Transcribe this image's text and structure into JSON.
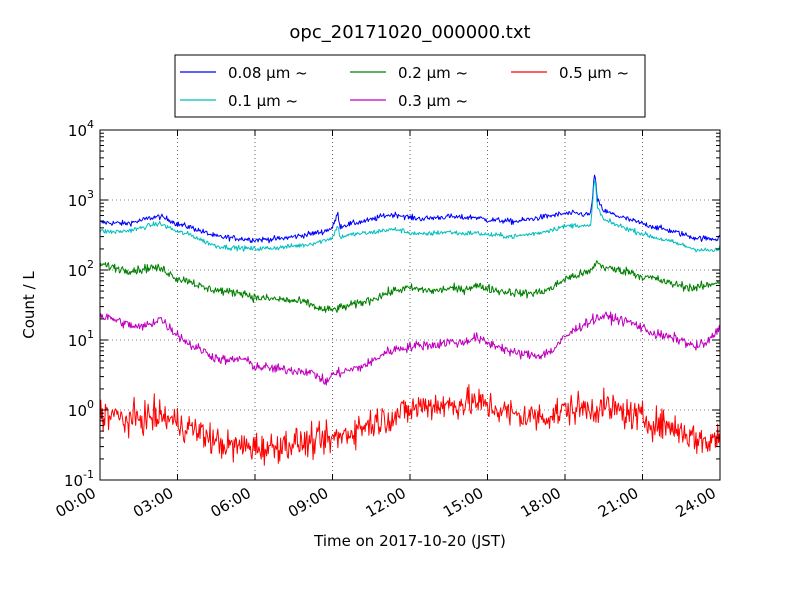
{
  "chart_data": {
    "type": "line",
    "title": "opc_20171020_000000.txt",
    "xlabel": "Time on 2017-10-20 (JST)",
    "ylabel": "Count / L",
    "xlim": [
      0,
      24
    ],
    "ylim": [
      0.1,
      10000
    ],
    "yscale": "log",
    "grid": true,
    "legend_position": "top (outside plot, above axes)",
    "x_ticks": [
      {
        "value": 0,
        "label": "00:00"
      },
      {
        "value": 3,
        "label": "03:00"
      },
      {
        "value": 6,
        "label": "06:00"
      },
      {
        "value": 9,
        "label": "09:00"
      },
      {
        "value": 12,
        "label": "12:00"
      },
      {
        "value": 15,
        "label": "15:00"
      },
      {
        "value": 18,
        "label": "18:00"
      },
      {
        "value": 21,
        "label": "21:00"
      },
      {
        "value": 24,
        "label": "24:00"
      }
    ],
    "y_ticks": [
      {
        "value": 0.1,
        "base": "10",
        "exp": "-1"
      },
      {
        "value": 1,
        "base": "10",
        "exp": "0"
      },
      {
        "value": 10,
        "base": "10",
        "exp": "1"
      },
      {
        "value": 100,
        "base": "10",
        "exp": "2"
      },
      {
        "value": 1000,
        "base": "10",
        "exp": "3"
      },
      {
        "value": 10000,
        "base": "10",
        "exp": "4"
      }
    ],
    "series": [
      {
        "name": "0.08 μm ~",
        "color": "#0000ff",
        "noise": 0.04,
        "points": [
          [
            0,
            480
          ],
          [
            0.5,
            470
          ],
          [
            1,
            460
          ],
          [
            1.5,
            500
          ],
          [
            2,
            560
          ],
          [
            2.3,
            580
          ],
          [
            2.7,
            520
          ],
          [
            3,
            450
          ],
          [
            3.5,
            410
          ],
          [
            4,
            350
          ],
          [
            4.5,
            300
          ],
          [
            5,
            290
          ],
          [
            6,
            270
          ],
          [
            7,
            280
          ],
          [
            8,
            320
          ],
          [
            8.6,
            350
          ],
          [
            9,
            400
          ],
          [
            9.2,
            650
          ],
          [
            9.3,
            420
          ],
          [
            9.5,
            440
          ],
          [
            10,
            480
          ],
          [
            10.5,
            520
          ],
          [
            11,
            600
          ],
          [
            11.5,
            620
          ],
          [
            12,
            560
          ],
          [
            12.5,
            540
          ],
          [
            13,
            560
          ],
          [
            13.5,
            580
          ],
          [
            14,
            560
          ],
          [
            14.5,
            570
          ],
          [
            15,
            520
          ],
          [
            15.5,
            510
          ],
          [
            16,
            490
          ],
          [
            16.5,
            520
          ],
          [
            17,
            560
          ],
          [
            17.5,
            600
          ],
          [
            18,
            640
          ],
          [
            18.5,
            640
          ],
          [
            18.8,
            620
          ],
          [
            19,
            630
          ],
          [
            19.15,
            2500
          ],
          [
            19.25,
            1000
          ],
          [
            19.5,
            700
          ],
          [
            20,
            600
          ],
          [
            20.5,
            520
          ],
          [
            21,
            460
          ],
          [
            21.5,
            410
          ],
          [
            22,
            370
          ],
          [
            22.5,
            330
          ],
          [
            23,
            290
          ],
          [
            23.5,
            280
          ],
          [
            23.9,
            280
          ],
          [
            24,
            320
          ]
        ]
      },
      {
        "name": "0.1 μm ~",
        "color": "#00bfbf",
        "noise": 0.035,
        "points": [
          [
            0,
            360
          ],
          [
            0.5,
            350
          ],
          [
            1,
            360
          ],
          [
            1.5,
            390
          ],
          [
            2,
            440
          ],
          [
            2.3,
            460
          ],
          [
            2.7,
            400
          ],
          [
            3,
            350
          ],
          [
            3.5,
            320
          ],
          [
            4,
            260
          ],
          [
            4.5,
            220
          ],
          [
            5,
            210
          ],
          [
            6,
            200
          ],
          [
            7,
            210
          ],
          [
            8,
            230
          ],
          [
            8.6,
            260
          ],
          [
            9,
            290
          ],
          [
            9.2,
            430
          ],
          [
            9.3,
            290
          ],
          [
            9.5,
            310
          ],
          [
            10,
            330
          ],
          [
            10.5,
            340
          ],
          [
            11,
            370
          ],
          [
            11.5,
            380
          ],
          [
            12,
            340
          ],
          [
            12.5,
            320
          ],
          [
            13,
            340
          ],
          [
            13.5,
            350
          ],
          [
            14,
            330
          ],
          [
            14.5,
            340
          ],
          [
            15,
            320
          ],
          [
            15.5,
            310
          ],
          [
            16,
            300
          ],
          [
            16.5,
            320
          ],
          [
            17,
            340
          ],
          [
            17.5,
            380
          ],
          [
            18,
            420
          ],
          [
            18.5,
            440
          ],
          [
            18.8,
            420
          ],
          [
            19,
            420
          ],
          [
            19.15,
            2300
          ],
          [
            19.25,
            800
          ],
          [
            19.5,
            520
          ],
          [
            20,
            440
          ],
          [
            20.5,
            380
          ],
          [
            21,
            330
          ],
          [
            21.5,
            290
          ],
          [
            22,
            260
          ],
          [
            22.5,
            230
          ],
          [
            23,
            200
          ],
          [
            23.5,
            190
          ],
          [
            23.9,
            190
          ],
          [
            24,
            210
          ]
        ]
      },
      {
        "name": "0.2 μm ~",
        "color": "#008000",
        "noise": 0.06,
        "points": [
          [
            0,
            120
          ],
          [
            0.5,
            110
          ],
          [
            1,
            100
          ],
          [
            1.5,
            100
          ],
          [
            2,
            110
          ],
          [
            2.5,
            100
          ],
          [
            3,
            75
          ],
          [
            3.5,
            70
          ],
          [
            4,
            55
          ],
          [
            4.5,
            52
          ],
          [
            5,
            48
          ],
          [
            5.5,
            48
          ],
          [
            6,
            40
          ],
          [
            7,
            38
          ],
          [
            8,
            34
          ],
          [
            8.6,
            27
          ],
          [
            9,
            27
          ],
          [
            9.5,
            30
          ],
          [
            10,
            33
          ],
          [
            10.5,
            38
          ],
          [
            11,
            45
          ],
          [
            11.5,
            52
          ],
          [
            12,
            55
          ],
          [
            12.5,
            52
          ],
          [
            13,
            50
          ],
          [
            13.5,
            55
          ],
          [
            14,
            52
          ],
          [
            14.5,
            60
          ],
          [
            15,
            55
          ],
          [
            15.5,
            50
          ],
          [
            16,
            48
          ],
          [
            16.5,
            46
          ],
          [
            17,
            48
          ],
          [
            17.5,
            55
          ],
          [
            18,
            75
          ],
          [
            18.5,
            85
          ],
          [
            19,
            95
          ],
          [
            19.2,
            130
          ],
          [
            19.5,
            110
          ],
          [
            20,
            100
          ],
          [
            20.5,
            95
          ],
          [
            21,
            80
          ],
          [
            21.5,
            75
          ],
          [
            22,
            65
          ],
          [
            22.5,
            60
          ],
          [
            23,
            55
          ],
          [
            23.5,
            60
          ],
          [
            24,
            70
          ]
        ]
      },
      {
        "name": "0.3 μm ~",
        "color": "#bf00bf",
        "noise": 0.07,
        "points": [
          [
            0,
            22
          ],
          [
            0.5,
            20
          ],
          [
            1,
            17
          ],
          [
            1.5,
            15
          ],
          [
            2,
            17
          ],
          [
            2.3,
            21
          ],
          [
            2.6,
            16
          ],
          [
            3,
            12
          ],
          [
            3.5,
            8.5
          ],
          [
            4,
            7
          ],
          [
            4.5,
            5.5
          ],
          [
            5,
            5
          ],
          [
            5.5,
            5.5
          ],
          [
            6,
            4.2
          ],
          [
            7,
            3.8
          ],
          [
            8,
            3.6
          ],
          [
            8.5,
            3.0
          ],
          [
            8.7,
            2.4
          ],
          [
            9,
            3.2
          ],
          [
            9.5,
            3.6
          ],
          [
            10,
            4.0
          ],
          [
            10.5,
            4.8
          ],
          [
            11,
            6.5
          ],
          [
            11.5,
            7.5
          ],
          [
            12,
            8
          ],
          [
            12.5,
            8.5
          ],
          [
            13,
            8.5
          ],
          [
            13.5,
            9.5
          ],
          [
            14,
            9
          ],
          [
            14.5,
            11
          ],
          [
            15,
            9
          ],
          [
            15.5,
            8
          ],
          [
            16,
            6.5
          ],
          [
            16.5,
            6.2
          ],
          [
            17,
            6
          ],
          [
            17.5,
            7
          ],
          [
            18,
            11
          ],
          [
            18.5,
            15
          ],
          [
            19,
            19
          ],
          [
            19.5,
            22
          ],
          [
            20,
            20
          ],
          [
            20.5,
            18
          ],
          [
            21,
            15
          ],
          [
            21.5,
            12
          ],
          [
            22,
            11
          ],
          [
            22.5,
            10
          ],
          [
            23,
            8
          ],
          [
            23.5,
            9
          ],
          [
            24,
            15
          ]
        ]
      },
      {
        "name": "0.5 μm ~",
        "color": "#ff0000",
        "noise": 0.22,
        "points": [
          [
            0,
            0.9
          ],
          [
            0.5,
            0.85
          ],
          [
            1,
            0.7
          ],
          [
            1.5,
            0.75
          ],
          [
            2,
            0.8
          ],
          [
            2.5,
            0.8
          ],
          [
            3,
            0.65
          ],
          [
            3.5,
            0.55
          ],
          [
            4,
            0.45
          ],
          [
            4.5,
            0.35
          ],
          [
            5,
            0.3
          ],
          [
            5.5,
            0.3
          ],
          [
            6,
            0.3
          ],
          [
            6.5,
            0.28
          ],
          [
            7,
            0.32
          ],
          [
            7.5,
            0.34
          ],
          [
            8,
            0.34
          ],
          [
            8.5,
            0.36
          ],
          [
            9,
            0.38
          ],
          [
            9.5,
            0.45
          ],
          [
            10,
            0.55
          ],
          [
            10.5,
            0.65
          ],
          [
            11,
            0.75
          ],
          [
            11.5,
            0.85
          ],
          [
            12,
            1.0
          ],
          [
            12.5,
            1.15
          ],
          [
            13,
            1.2
          ],
          [
            13.5,
            1.15
          ],
          [
            14,
            1.25
          ],
          [
            14.5,
            1.3
          ],
          [
            15,
            1.15
          ],
          [
            15.5,
            1.0
          ],
          [
            16,
            0.85
          ],
          [
            16.5,
            0.8
          ],
          [
            17,
            0.8
          ],
          [
            17.5,
            0.85
          ],
          [
            18,
            1.0
          ],
          [
            18.5,
            1.05
          ],
          [
            19,
            1.05
          ],
          [
            19.5,
            1.1
          ],
          [
            20,
            1.0
          ],
          [
            20.5,
            0.85
          ],
          [
            21,
            0.75
          ],
          [
            21.5,
            0.65
          ],
          [
            22,
            0.6
          ],
          [
            22.5,
            0.5
          ],
          [
            23,
            0.4
          ],
          [
            23.5,
            0.35
          ],
          [
            24,
            0.42
          ]
        ]
      }
    ]
  }
}
